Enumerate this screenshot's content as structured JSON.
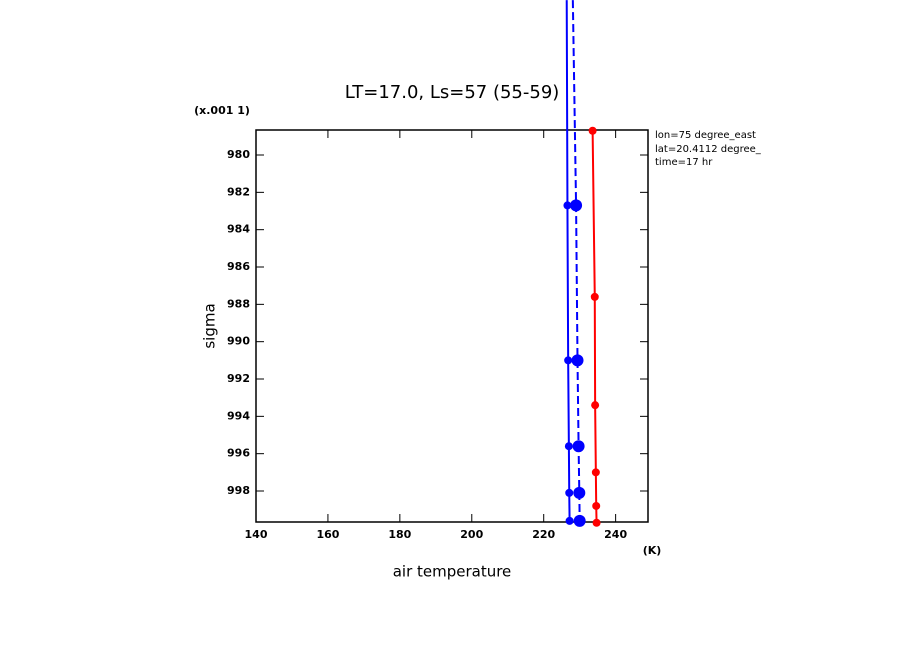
{
  "chart_data": {
    "type": "line",
    "title": "LT=17.0, Ls=57 (55-59)",
    "x_label": "air temperature",
    "x_unit": "(K)",
    "y_label": "sigma",
    "y_unit": "(x.001 1)",
    "annotations": [
      "lon=75 degree_east",
      "lat=20.4112 degree_",
      "time=17 hr"
    ],
    "xlim": [
      140,
      249
    ],
    "xticks": [
      140,
      160,
      180,
      200,
      220,
      240
    ],
    "ylim": [
      978.66,
      999.66
    ],
    "y_inverted": true,
    "yticks": [
      980,
      982,
      984,
      986,
      988,
      990,
      992,
      994,
      996,
      998
    ],
    "series": [
      {
        "color": "#0000ff",
        "linestyle": "solid",
        "x": [
          226.4,
          226.6,
          226.8,
          227.0,
          227.1,
          227.2
        ],
        "y": [
          971.7,
          982.7,
          991.0,
          995.6,
          998.1,
          999.6
        ]
      },
      {
        "color": "#0000ff",
        "linestyle": "dashed",
        "x": [
          228.1,
          229.0,
          229.4,
          229.7,
          229.9,
          230.0
        ],
        "y": [
          971.7,
          982.7,
          991.0,
          995.6,
          998.1,
          999.6
        ]
      },
      {
        "color": "#ff0000",
        "linestyle": "solid",
        "x": [
          233.6,
          234.2,
          234.3,
          234.5,
          234.6,
          234.7
        ],
        "y": [
          978.7,
          987.6,
          993.4,
          997.0,
          998.8,
          999.7
        ]
      }
    ]
  }
}
